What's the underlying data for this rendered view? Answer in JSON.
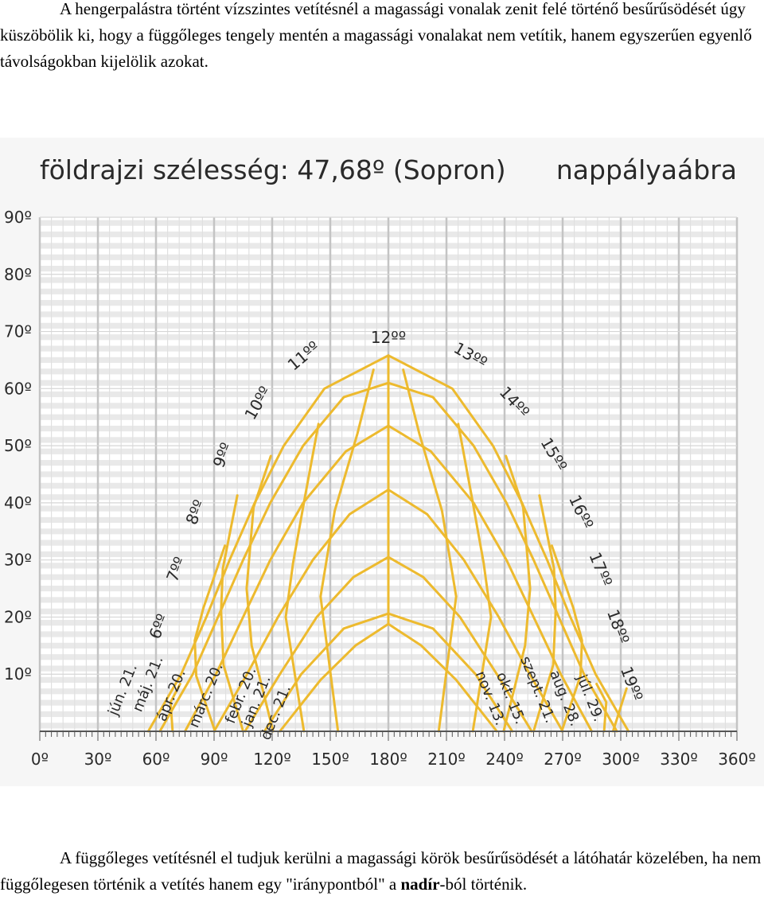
{
  "intro_text": "A hengerpalástra történt vízszintes vetítésnél a magassági vonalak zenit felé történő besűrűsödését úgy küszöbölik ki, hogy a függőleges tengely mentén a magassági vonalakat nem vetítik, hanem egyszerűen egyenlő távolságokban kijelölik azokat.",
  "outro": {
    "text_before": "A függőleges vetítésnél el tudjuk kerülni a magassági körök besűrűsödését a látóhatár közelében, ha nem függőlegesen történik a vetítés hanem egy \"iránypontból\" a ",
    "bold_word": "nadír",
    "text_after": "-ból történik."
  },
  "chart_data": {
    "type": "line",
    "title": "földrajzi szélesség: 47,68º (Sopron)",
    "subtitle": "nappályaábra",
    "xlim": [
      0,
      360
    ],
    "ylim": [
      0,
      90
    ],
    "x_ticks": [
      "0º",
      "30º",
      "60º",
      "90º",
      "120º",
      "150º",
      "180º",
      "210º",
      "240º",
      "270º",
      "300º",
      "330º",
      "360º"
    ],
    "y_ticks": [
      "90º",
      "80º",
      "70º",
      "60º",
      "50º",
      "40º",
      "30º",
      "20º",
      "10º"
    ],
    "grid": true,
    "line_color": "#EDBA2E",
    "series": [
      {
        "name": "jún. 21.",
        "points": [
          [
            56,
            0
          ],
          [
            73,
            10
          ],
          [
            86,
            20
          ],
          [
            98,
            30
          ],
          [
            111,
            40
          ],
          [
            126,
            50
          ],
          [
            147,
            60
          ],
          [
            180,
            65.8
          ],
          [
            213,
            60
          ],
          [
            234,
            50
          ],
          [
            249,
            40
          ],
          [
            262,
            30
          ],
          [
            274,
            20
          ],
          [
            287,
            10
          ],
          [
            304,
            0
          ]
        ]
      },
      {
        "name": "máj. 21.",
        "points": [
          [
            62,
            0
          ],
          [
            79,
            10
          ],
          [
            92,
            20
          ],
          [
            105,
            30
          ],
          [
            119,
            40
          ],
          [
            136,
            50
          ],
          [
            157,
            58.5
          ],
          [
            180,
            61
          ],
          [
            203,
            58.5
          ],
          [
            224,
            50
          ],
          [
            241,
            40
          ],
          [
            255,
            30
          ],
          [
            268,
            20
          ],
          [
            281,
            10
          ],
          [
            298,
            0
          ]
        ]
      },
      {
        "name": "ápr. 20.",
        "points": [
          [
            75,
            0
          ],
          [
            91,
            10
          ],
          [
            105,
            20
          ],
          [
            119,
            30
          ],
          [
            136,
            40
          ],
          [
            158,
            49
          ],
          [
            180,
            53.5
          ],
          [
            202,
            49
          ],
          [
            224,
            40
          ],
          [
            241,
            30
          ],
          [
            255,
            20
          ],
          [
            269,
            10
          ],
          [
            285,
            0
          ]
        ]
      },
      {
        "name": "márc. 20.",
        "points": [
          [
            90,
            0
          ],
          [
            107,
            10
          ],
          [
            123,
            20
          ],
          [
            141,
            30
          ],
          [
            160,
            38
          ],
          [
            180,
            42.3
          ],
          [
            200,
            38
          ],
          [
            219,
            30
          ],
          [
            237,
            20
          ],
          [
            253,
            10
          ],
          [
            270,
            0
          ]
        ]
      },
      {
        "name": "febr. 20.",
        "points": [
          [
            106,
            0
          ],
          [
            124,
            10
          ],
          [
            143,
            20
          ],
          [
            162,
            27
          ],
          [
            180,
            30.5
          ],
          [
            198,
            27
          ],
          [
            217,
            20
          ],
          [
            236,
            10
          ],
          [
            254,
            0
          ]
        ]
      },
      {
        "name": "jan. 21.",
        "points": [
          [
            116,
            0
          ],
          [
            135,
            10
          ],
          [
            157,
            18
          ],
          [
            180,
            20.6
          ],
          [
            203,
            18
          ],
          [
            225,
            10
          ],
          [
            244,
            0
          ]
        ]
      },
      {
        "name": "dec. 21.",
        "points": [
          [
            124,
            0
          ],
          [
            145,
            9
          ],
          [
            163,
            15
          ],
          [
            180,
            18.8
          ],
          [
            197,
            15
          ],
          [
            215,
            9
          ],
          [
            236,
            0
          ]
        ]
      }
    ],
    "hour_lines": [
      {
        "label": "6ºº",
        "points": [
          [
            68.6,
            0
          ],
          [
            67.5,
            5.1
          ],
          [
            72.5,
            8.3
          ]
        ]
      },
      {
        "label": "7ºº",
        "points": [
          [
            90.5,
            0
          ],
          [
            80.8,
            9.7
          ],
          [
            80,
            15.9
          ],
          [
            84.5,
            21.6
          ],
          [
            95.6,
            32.5
          ]
        ]
      },
      {
        "label": "8ºº",
        "points": [
          [
            105,
            0
          ],
          [
            94.9,
            11.6
          ],
          [
            93.6,
            21.1
          ],
          [
            94.5,
            28.5
          ],
          [
            102,
            41.3
          ]
        ]
      },
      {
        "label": "9ºº",
        "points": [
          [
            120.5,
            0
          ],
          [
            109.4,
            15
          ],
          [
            106.8,
            25
          ],
          [
            110.4,
            39.2
          ],
          [
            119.3,
            48.2
          ]
        ]
      },
      {
        "label": "10ºº",
        "points": [
          [
            136.4,
            0
          ],
          [
            127,
            20
          ],
          [
            130.8,
            29.5
          ],
          [
            137,
            41.2
          ],
          [
            143.9,
            53.8
          ]
        ]
      },
      {
        "label": "11ºº",
        "points": [
          [
            154,
            0
          ],
          [
            145,
            23.6
          ],
          [
            152.3,
            38.6
          ],
          [
            164,
            52.1
          ],
          [
            172.3,
            63.3
          ]
        ]
      },
      {
        "label": "12ºº",
        "points": [
          [
            180,
            18.8
          ],
          [
            180,
            65.8
          ]
        ]
      },
      {
        "label": "13ºº",
        "points": [
          [
            206,
            0
          ],
          [
            215,
            23.6
          ],
          [
            207.7,
            38.6
          ],
          [
            196,
            52.1
          ],
          [
            187.7,
            63.3
          ]
        ]
      },
      {
        "label": "14ºº",
        "points": [
          [
            223.6,
            0
          ],
          [
            233,
            20
          ],
          [
            229.2,
            29.5
          ],
          [
            223,
            41.2
          ],
          [
            216.1,
            53.8
          ]
        ]
      },
      {
        "label": "15ºº",
        "points": [
          [
            239.5,
            0
          ],
          [
            250.6,
            15
          ],
          [
            253.2,
            25
          ],
          [
            249.6,
            39.2
          ],
          [
            240.7,
            48.2
          ]
        ]
      },
      {
        "label": "16ºº",
        "points": [
          [
            255,
            0
          ],
          [
            265.1,
            11.6
          ],
          [
            266.4,
            21.1
          ],
          [
            265.5,
            28.5
          ],
          [
            258,
            41.3
          ]
        ]
      },
      {
        "label": "17ºº",
        "points": [
          [
            269.5,
            0
          ],
          [
            279.2,
            9.7
          ],
          [
            280,
            15.9
          ],
          [
            275.5,
            21.6
          ],
          [
            264.4,
            32.5
          ]
        ]
      },
      {
        "label": "18ºº",
        "points": [
          [
            291.4,
            0
          ],
          [
            292.5,
            5.1
          ],
          [
            287.5,
            8.3
          ]
        ]
      },
      {
        "label": "19ºº",
        "points": [
          [
            296,
            0
          ],
          [
            303,
            7.5
          ]
        ]
      }
    ]
  }
}
